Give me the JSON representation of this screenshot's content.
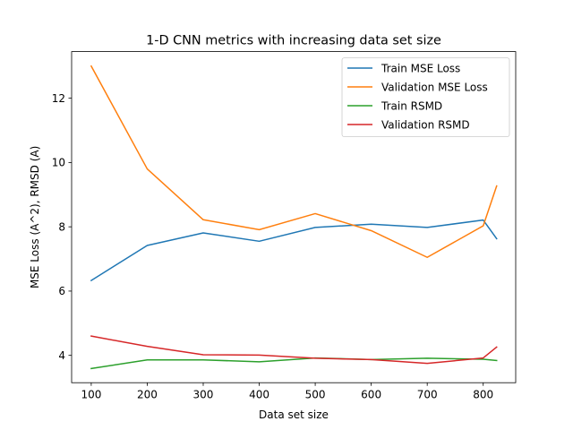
{
  "chart_data": {
    "type": "line",
    "title": "1-D CNN metrics with increasing data set size",
    "xlabel": "Data set size",
    "ylabel": "MSE Loss (A^2), RMSD (A)",
    "xlim": [
      65,
      858
    ],
    "ylim": [
      3.15,
      13.45
    ],
    "xticks": [
      100,
      200,
      300,
      400,
      500,
      600,
      700,
      800
    ],
    "yticks": [
      4,
      6,
      8,
      10,
      12
    ],
    "grid": false,
    "legend_position": "top-right",
    "x": [
      100,
      200,
      300,
      400,
      500,
      600,
      700,
      800,
      824
    ],
    "series": [
      {
        "name": "Train MSE Loss",
        "color": "#1f77b4",
        "values": [
          6.33,
          7.42,
          7.81,
          7.55,
          7.98,
          8.08,
          7.98,
          8.21,
          7.63
        ]
      },
      {
        "name": "Validation MSE Loss",
        "color": "#ff7f0e",
        "values": [
          13.0,
          9.8,
          8.22,
          7.91,
          8.41,
          7.88,
          7.05,
          8.03,
          9.27
        ]
      },
      {
        "name": "Train RSMD",
        "color": "#2ca02c",
        "values": [
          3.59,
          3.86,
          3.86,
          3.8,
          3.92,
          3.87,
          3.91,
          3.88,
          3.84
        ]
      },
      {
        "name": "Validation RSMD",
        "color": "#d62728",
        "values": [
          4.6,
          4.28,
          4.02,
          4.01,
          3.91,
          3.87,
          3.75,
          3.92,
          4.26
        ]
      }
    ]
  }
}
